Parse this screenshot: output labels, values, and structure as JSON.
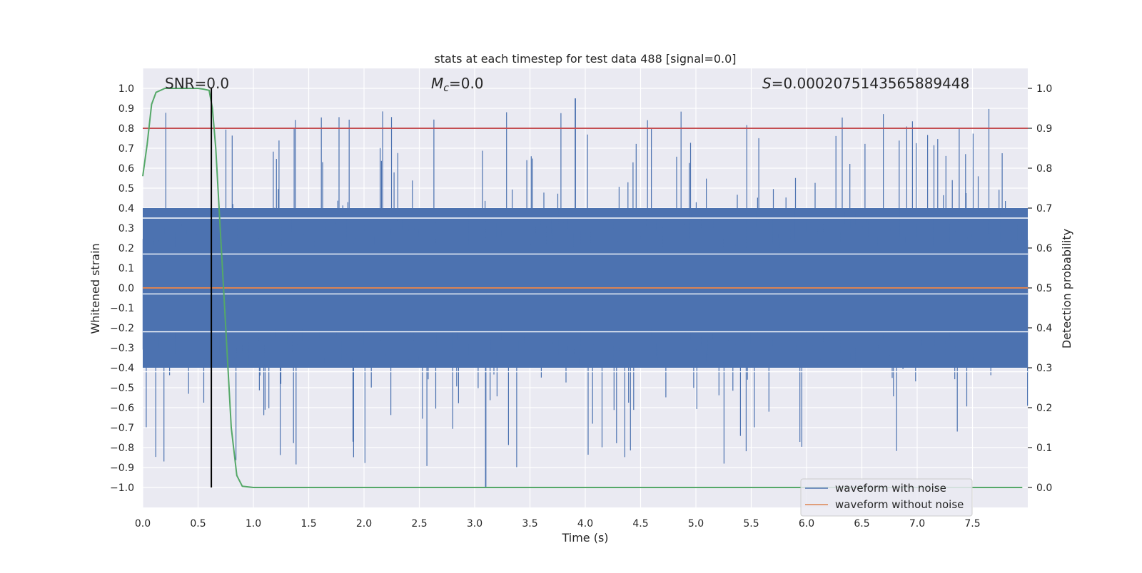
{
  "chart_data": {
    "type": "line",
    "title": "stats at each timestep for test data 488 [signal=0.0]",
    "xlabel": "Time (s)",
    "ylabel": "Whitened strain",
    "ylabel_right": "Detection probability",
    "xlim": [
      0.0,
      8.0
    ],
    "ylim": [
      -1.1,
      1.1
    ],
    "ylim_right": [
      -0.05,
      1.05
    ],
    "xticks": [
      "0.0",
      "0.5",
      "1.0",
      "1.5",
      "2.0",
      "2.5",
      "3.0",
      "3.5",
      "4.0",
      "4.5",
      "5.0",
      "5.5",
      "6.0",
      "6.5",
      "7.0",
      "7.5"
    ],
    "xtick_values": [
      0.0,
      0.5,
      1.0,
      1.5,
      2.0,
      2.5,
      3.0,
      3.5,
      4.0,
      4.5,
      5.0,
      5.5,
      6.0,
      6.5,
      7.0,
      7.5
    ],
    "yticks": [
      "1.0",
      "0.9",
      "0.8",
      "0.7",
      "0.6",
      "0.5",
      "0.4",
      "0.3",
      "0.2",
      "0.1",
      "0.0",
      "−0.1",
      "−0.2",
      "−0.3",
      "−0.4",
      "−0.5",
      "−0.6",
      "−0.7",
      "−0.8",
      "−0.9",
      "−1.0"
    ],
    "ytick_values": [
      1.0,
      0.9,
      0.8,
      0.7,
      0.6,
      0.5,
      0.4,
      0.3,
      0.2,
      0.1,
      0.0,
      -0.1,
      -0.2,
      -0.3,
      -0.4,
      -0.5,
      -0.6,
      -0.7,
      -0.8,
      -0.9,
      -1.0
    ],
    "yticks_right": [
      "1.0",
      "0.9",
      "0.8",
      "0.7",
      "0.6",
      "0.5",
      "0.4",
      "0.3",
      "0.2",
      "0.1",
      "0.0"
    ],
    "ytick_right_values": [
      1.0,
      0.9,
      0.8,
      0.7,
      0.6,
      0.5,
      0.4,
      0.3,
      0.2,
      0.1,
      0.0
    ],
    "annotations": {
      "snr": "SNR=0.0",
      "mc_symbol": "M",
      "mc_sub": "c",
      "mc_value": "=0.0",
      "s_symbol": "S",
      "s_value": "=0.0002075143565889448"
    },
    "series": [
      {
        "name": "waveform with noise",
        "color": "#4c72b0",
        "kind": "noise",
        "envelope": 0.4,
        "peak_max": 0.95,
        "peak_min": -1.0
      },
      {
        "name": "waveform without noise",
        "color": "#dd8452",
        "kind": "constant",
        "value": 0.0
      },
      {
        "name": "detection probability",
        "color": "#55a868",
        "axis": "right",
        "x": [
          0.0,
          0.04,
          0.08,
          0.12,
          0.2,
          0.3,
          0.4,
          0.5,
          0.55,
          0.6,
          0.63,
          0.66,
          0.7,
          0.75,
          0.8,
          0.85,
          0.9,
          1.0,
          2.0,
          3.0,
          4.0,
          5.0,
          6.0,
          7.0,
          7.95
        ],
        "y": [
          0.78,
          0.86,
          0.96,
          0.99,
          1.0,
          1.0,
          1.0,
          1.0,
          0.998,
          0.995,
          0.95,
          0.85,
          0.65,
          0.4,
          0.15,
          0.03,
          0.003,
          0.0,
          0.0,
          0.0,
          0.0,
          0.0,
          0.0,
          0.0,
          0.0
        ]
      }
    ],
    "threshold": {
      "value": 0.9,
      "axis": "right",
      "color": "#c44e52"
    },
    "marker_time": {
      "x": 0.62,
      "color": "#000000"
    },
    "legend": {
      "position": "lower-right",
      "entries": [
        "waveform with noise",
        "waveform without noise"
      ]
    },
    "grid": true
  }
}
